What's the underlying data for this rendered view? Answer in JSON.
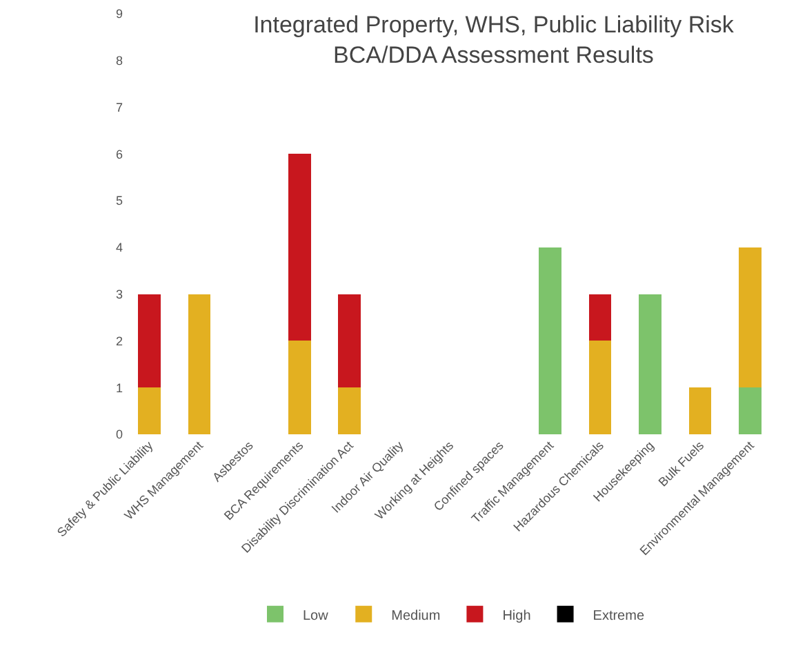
{
  "chart_data": {
    "type": "bar",
    "stacked": true,
    "title": "Integrated Property, WHS, Public Liability Risk\nBCA/DDA Assessment Results",
    "categories": [
      "Safety & Public Liability",
      "WHS Management",
      "Asbestos",
      "BCA Requirements",
      "Disability Discrimination Act",
      "Indoor Air Quality",
      "Working at Heights",
      "Confined spaces",
      "Traffic Management",
      "Hazardous Chemicals",
      "Housekeeping",
      "Bulk Fuels",
      "Environmental Management"
    ],
    "series": [
      {
        "name": "Low",
        "color": "#7dc36b",
        "values": [
          0,
          0,
          0,
          0,
          0,
          0,
          0,
          0,
          4,
          0,
          3,
          0,
          1
        ]
      },
      {
        "name": "Medium",
        "color": "#e3b021",
        "values": [
          1,
          3,
          0,
          2,
          1,
          0,
          0,
          0,
          0,
          2,
          0,
          1,
          3
        ]
      },
      {
        "name": "High",
        "color": "#c8171e",
        "values": [
          2,
          0,
          0,
          4,
          2,
          0,
          0,
          0,
          0,
          1,
          0,
          0,
          0
        ]
      },
      {
        "name": "Extreme",
        "color": "#000000",
        "values": [
          0,
          0,
          0,
          0,
          0,
          0,
          0,
          0,
          0,
          0,
          0,
          0,
          0
        ]
      }
    ],
    "ylim": [
      0,
      9
    ],
    "yticks": [
      0,
      1,
      2,
      3,
      4,
      5,
      6,
      7,
      8,
      9
    ],
    "legend": "bottom"
  }
}
